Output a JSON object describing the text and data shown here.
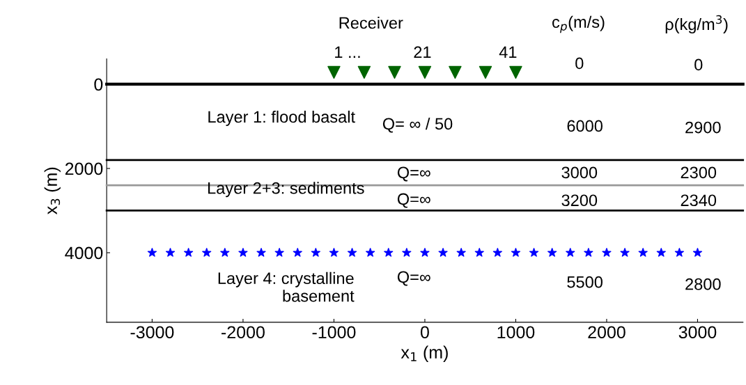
{
  "chart_data": {
    "type": "scatter",
    "xlabel": "x$_{1}$ (m)",
    "ylabel": "x$_{3}$ (m)",
    "xlim": [
      -3500,
      3500
    ],
    "ylim": [
      5650,
      -600
    ],
    "xticks": [
      -3000,
      -2000,
      -1000,
      0,
      1000,
      2000,
      3000
    ],
    "yticks": [
      0,
      2000,
      4000
    ],
    "grid": false,
    "legend": false,
    "series": [
      {
        "color": "#006400",
        "marker": "triangle",
        "x": [
          -1000,
          -667,
          -333,
          0,
          333,
          667,
          1000
        ],
        "values": [
          -280,
          -280,
          -280,
          -280,
          -280,
          -280,
          -280
        ]
      },
      {
        "color": "#0000ff",
        "marker": "star",
        "x": [
          -3000,
          -2800,
          -2600,
          -2400,
          -2200,
          -2000,
          -1800,
          -1600,
          -1400,
          -1200,
          -1000,
          -800,
          -600,
          -400,
          -200,
          0,
          200,
          400,
          600,
          800,
          1000,
          1200,
          1400,
          1600,
          1800,
          2000,
          2200,
          2400,
          2600,
          2800,
          3000
        ],
        "values": [
          4000,
          4000,
          4000,
          4000,
          4000,
          4000,
          4000,
          4000,
          4000,
          4000,
          4000,
          4000,
          4000,
          4000,
          4000,
          4000,
          4000,
          4000,
          4000,
          4000,
          4000,
          4000,
          4000,
          4000,
          4000,
          4000,
          4000,
          4000,
          4000,
          4000,
          4000
        ]
      }
    ],
    "ref_lines": [
      {
        "axis": "y",
        "value": 0,
        "color": "#000000"
      },
      {
        "axis": "y",
        "value": 1800,
        "color": "#000000"
      },
      {
        "axis": "y",
        "value": 2400,
        "color": "#999999"
      },
      {
        "axis": "y",
        "value": 3000,
        "color": "#000000"
      }
    ],
    "annotations": [
      "Receiver",
      "1 ...",
      "21",
      "41",
      "c$_{p}$(m/s)",
      "ρ(kg/m$^{3}$)",
      "0",
      "0",
      "Layer 1: flood basalt",
      "Q= ∞ / 50",
      "6000",
      "2900",
      "Q=∞",
      "3000",
      "2300",
      "Layer 2+3: sediments",
      "Q=∞",
      "3200",
      "2340",
      "Layer 4: crystalline\nbasement",
      "Q=∞",
      "5500",
      "2800"
    ]
  }
}
